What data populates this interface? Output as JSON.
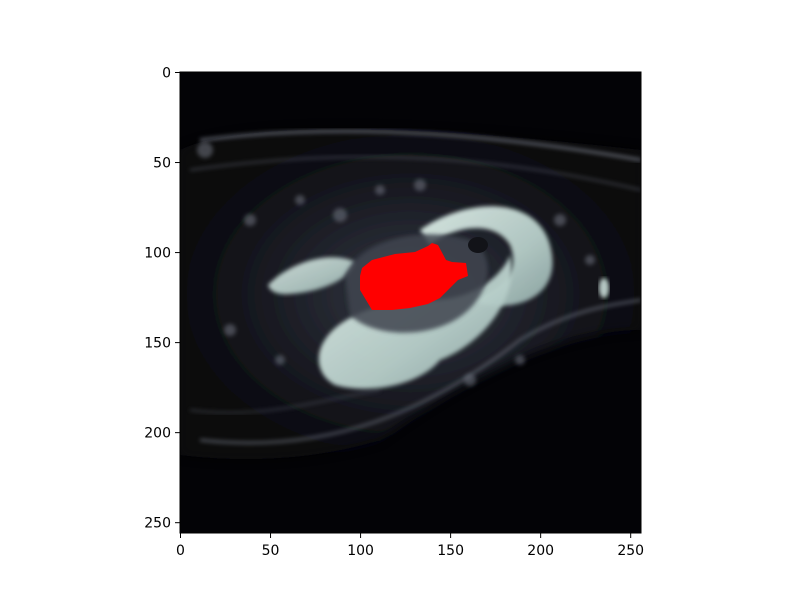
{
  "figure": {
    "image_description": "MRI slice with red segmentation overlay",
    "overlay_color": "#ff0000",
    "background_color": "#ffffff"
  },
  "chart_data": {
    "type": "heatmap",
    "title": "",
    "xlabel": "",
    "ylabel": "",
    "xlim": [
      0,
      256
    ],
    "ylim": [
      256,
      0
    ],
    "y_inverted": true,
    "xticks": [
      0,
      50,
      100,
      150,
      200,
      250
    ],
    "yticks": [
      0,
      50,
      100,
      150,
      200,
      250
    ],
    "xtick_labels": [
      "0",
      "50",
      "100",
      "150",
      "200",
      "250"
    ],
    "ytick_labels": [
      "0",
      "50",
      "100",
      "150",
      "200",
      "250"
    ],
    "grid": false,
    "colormap": "bone",
    "segmentation_mask": {
      "color": "#ff0000",
      "approx_extent_x": [
        100,
        160
      ],
      "approx_extent_y": [
        95,
        131
      ]
    }
  }
}
